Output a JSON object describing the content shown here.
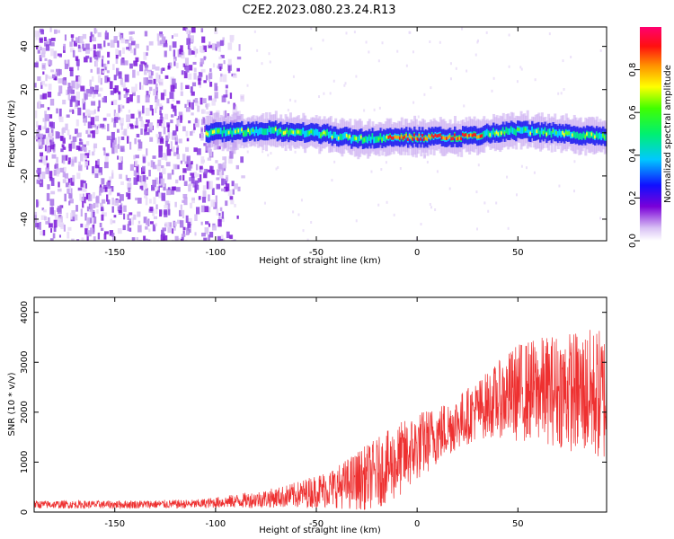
{
  "title": "C2E2.2023.080.23.24.R13",
  "colors": {
    "signal": "#ee3030",
    "axis": "#000000",
    "background": "#ffffff"
  },
  "chart_data": [
    {
      "type": "heatmap",
      "title": "",
      "xlabel": "Height of straight line (km)",
      "ylabel": "Frequency (Hz)",
      "xlim": [
        -190,
        94
      ],
      "ylim": [
        -50,
        49
      ],
      "x_ticks": [
        -150,
        -100,
        -50,
        0,
        50
      ],
      "y_ticks": [
        -40,
        -20,
        0,
        20,
        40
      ],
      "x_tick_labels": [
        "-150",
        "-100",
        "-50",
        "0",
        "50"
      ],
      "y_tick_labels": [
        "-40",
        "-20",
        "0",
        "20",
        "40"
      ],
      "colorbar": {
        "label": "Normalized spectral amplitude",
        "range": [
          0,
          1
        ],
        "ticks": [
          0.0,
          0.2,
          0.4,
          0.6,
          0.8
        ],
        "tick_labels": [
          "0.0",
          "0.2",
          "0.4",
          "0.6",
          "0.8"
        ],
        "colormap": "rainbow (white/violet → blue → cyan → green → yellow → red → magenta)"
      },
      "description": "Broadband noise for heights below about -90 km; a narrow band centred near 0 Hz (about ±5 Hz wide) from about -105 km to 94 km, strongest (red) between about -10 and 30 km.",
      "signal_band": {
        "x": [
          -105,
          -75,
          -50,
          -30,
          -10,
          0,
          10,
          20,
          30,
          50,
          70,
          94
        ],
        "center_hz": [
          0,
          1,
          0,
          -3,
          -2,
          -2,
          -2,
          -2,
          -1,
          1,
          0,
          -2
        ]
      }
    },
    {
      "type": "line",
      "title": "",
      "xlabel": "Height of straight line (km)",
      "ylabel": "SNR (10 * v/v)",
      "xlim": [
        -190,
        94
      ],
      "ylim": [
        0,
        4300
      ],
      "x_ticks": [
        -150,
        -100,
        -50,
        0,
        50
      ],
      "y_ticks": [
        0,
        1000,
        2000,
        3000,
        4000
      ],
      "x_tick_labels": [
        "-150",
        "-100",
        "-50",
        "0",
        "50"
      ],
      "y_tick_labels": [
        "0",
        "1000",
        "2000",
        "3000",
        "4000"
      ],
      "series": [
        {
          "color": "#ee3030",
          "x": [
            -190,
            -150,
            -110,
            -100,
            -90,
            -80,
            -70,
            -60,
            -50,
            -40,
            -30,
            -20,
            -10,
            0,
            10,
            20,
            30,
            40,
            50,
            60,
            70,
            80,
            90,
            94
          ],
          "baseline": [
            150,
            150,
            160,
            190,
            220,
            250,
            290,
            340,
            420,
            500,
            620,
            780,
            1000,
            1300,
            1550,
            1800,
            2050,
            2250,
            2400,
            2450,
            2450,
            2400,
            2350,
            2300
          ],
          "spread": [
            80,
            80,
            90,
            110,
            140,
            170,
            200,
            260,
            340,
            420,
            600,
            700,
            760,
            700,
            600,
            550,
            600,
            750,
            1000,
            1050,
            1150,
            1250,
            1350,
            1350
          ]
        }
      ]
    }
  ]
}
